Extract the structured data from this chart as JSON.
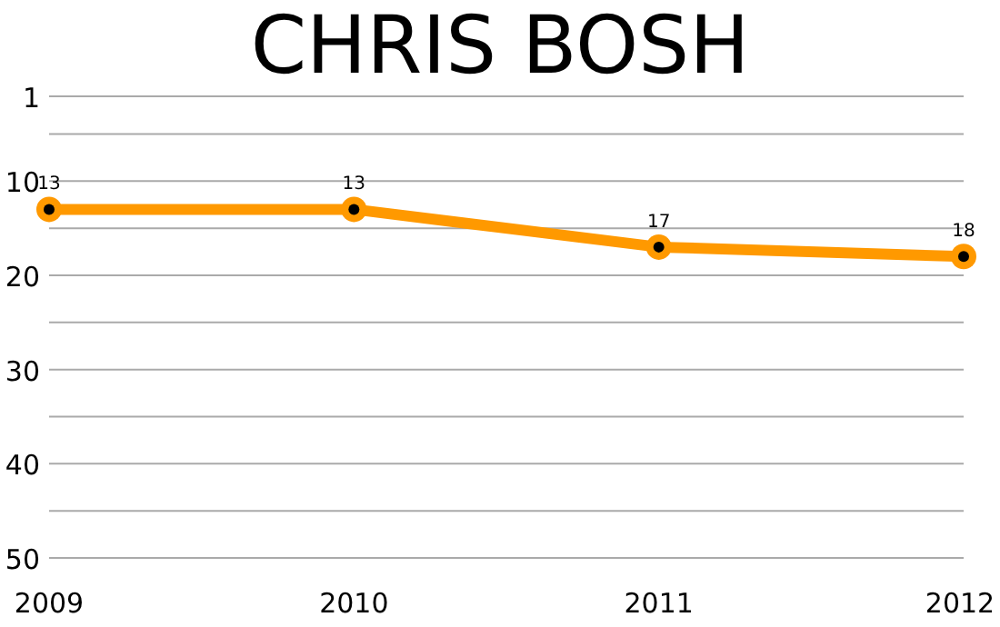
{
  "chart_data": {
    "type": "line",
    "title": "CHRIS BOSH",
    "x": [
      2009,
      2010,
      2011,
      2012
    ],
    "series": [
      {
        "color": "#ff9900",
        "values": [
          13,
          13,
          17,
          18
        ]
      }
    ],
    "xlim": [
      2009,
      2012
    ],
    "xticks": [
      2009,
      2010,
      2011,
      2012
    ],
    "ylim": [
      50,
      1
    ],
    "yticks": [
      {
        "value": 1,
        "label": "1"
      },
      {
        "value": 5,
        "label": null
      },
      10,
      {
        "value": 15,
        "label": null
      },
      20,
      {
        "value": 25,
        "label": null
      },
      30,
      {
        "value": 35,
        "label": null
      },
      40,
      {
        "value": 45,
        "label": null
      },
      50
    ],
    "grid": "y",
    "marker": "circle",
    "line_style": "solid",
    "data_labels": true
  }
}
